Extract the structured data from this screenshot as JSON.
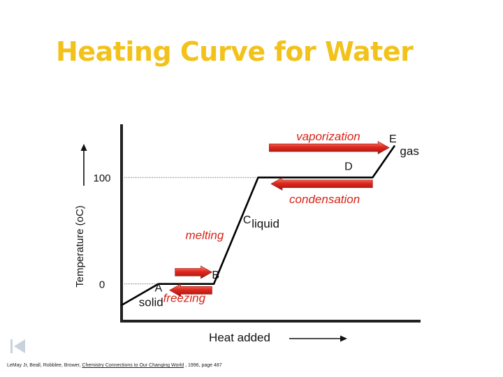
{
  "slide": {
    "title": "Heating Curve for Water",
    "title_color": "#f2c21b",
    "citation": {
      "authors": "LeMay Jr, Beall, Robblee, Brower, ",
      "book": "Chemistry Connections to Our Changing World",
      "details": " , 1996, page 487"
    },
    "nav_icon": "skip-back-icon"
  },
  "chart_data": {
    "type": "line",
    "xlabel": "Heat added",
    "ylabel": "Temperature (oC)",
    "y_ticks": [
      {
        "label": "0",
        "value": 0
      },
      {
        "label": "100",
        "value": 100
      }
    ],
    "series": [
      {
        "points": [
          {
            "x": 0,
            "y": -20
          },
          {
            "x": 1,
            "y": 0
          },
          {
            "x": 2.5,
            "y": 0
          },
          {
            "x": 3.7,
            "y": 100
          },
          {
            "x": 6.8,
            "y": 100
          },
          {
            "x": 7.4,
            "y": 130
          }
        ]
      }
    ],
    "segment_labels": [
      {
        "text": "A",
        "x": 1.0,
        "y": -7
      },
      {
        "text": "B",
        "x": 2.55,
        "y": 5
      },
      {
        "text": "C",
        "x": 3.4,
        "y": 57
      },
      {
        "text": "D",
        "x": 6.15,
        "y": 107
      },
      {
        "text": "E",
        "x": 7.35,
        "y": 133
      }
    ],
    "phase_labels": [
      {
        "text": "solid",
        "x": 0.8,
        "y": -21
      },
      {
        "text": "liquid",
        "x": 3.9,
        "y": 53
      },
      {
        "text": "gas",
        "x": 7.8,
        "y": 121
      }
    ],
    "transitions": [
      {
        "text": "melting",
        "x": 2.25,
        "y": 42,
        "arrow_direction": "right",
        "arrow_x": [
          1.45,
          2.45
        ],
        "arrow_y": 11,
        "label_side": "above"
      },
      {
        "text": "freezing",
        "x": 1.7,
        "y": -17,
        "arrow_direction": "left",
        "arrow_x": [
          1.3,
          2.45
        ],
        "arrow_y": -6,
        "label_side": "below"
      },
      {
        "text": "vaporization",
        "x": 5.6,
        "y": 135,
        "arrow_direction": "right",
        "arrow_x": [
          4.0,
          7.25
        ],
        "arrow_y": 128,
        "label_side": "above"
      },
      {
        "text": "condensation",
        "x": 5.5,
        "y": 76,
        "arrow_direction": "left",
        "arrow_x": [
          4.05,
          6.8
        ],
        "arrow_y": 94,
        "label_side": "below"
      }
    ],
    "x_arrow": true,
    "y_arrow": true,
    "gridlines": "dotted at 0 and 100",
    "colors": {
      "curve": "#000000",
      "arrow": "#e0281e",
      "transition_text": "#d62418"
    }
  }
}
